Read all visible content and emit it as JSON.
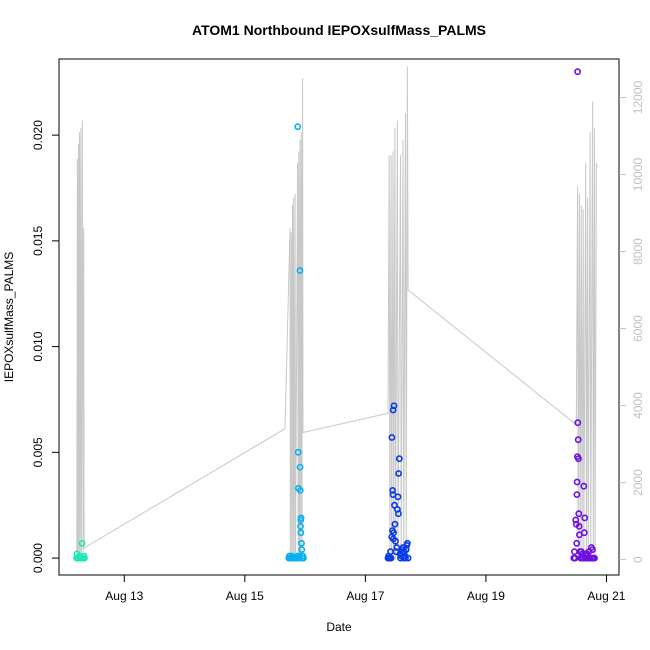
{
  "chart_data": {
    "type": "scatter",
    "title": "ATOM1 Northbound IEPOXsulfMass_PALMS",
    "xlabel": "Date",
    "ylabel": "IEPOXsulfMass_PALMS",
    "xlim": [
      "2016-08-11T22:00",
      "2016-08-21T05:00"
    ],
    "ylim": [
      -0.0008,
      0.0236
    ],
    "x_ticks": [
      {
        "date": "2016-08-13T00:00",
        "label": "Aug 13"
      },
      {
        "date": "2016-08-15T00:00",
        "label": "Aug 15"
      },
      {
        "date": "2016-08-17T00:00",
        "label": "Aug 17"
      },
      {
        "date": "2016-08-19T00:00",
        "label": "Aug 19"
      },
      {
        "date": "2016-08-21T00:00",
        "label": "Aug 21"
      }
    ],
    "y_ticks": [
      {
        "value": 0.0,
        "label": "0.000"
      },
      {
        "value": 0.005,
        "label": "0.005"
      },
      {
        "value": 0.01,
        "label": "0.010"
      },
      {
        "value": 0.015,
        "label": "0.015"
      },
      {
        "value": 0.02,
        "label": "0.020"
      }
    ],
    "y2lim": [
      -400,
      13000
    ],
    "y2_ticks": [
      {
        "value": 0,
        "label": "0"
      },
      {
        "value": 2000,
        "label": "2000"
      },
      {
        "value": 4000,
        "label": "4000"
      },
      {
        "value": 6000,
        "label": "6000"
      },
      {
        "value": 8000,
        "label": "8000"
      },
      {
        "value": 10000,
        "label": "10000"
      },
      {
        "value": 12000,
        "label": "12000"
      }
    ],
    "grid": false,
    "colors": {
      "altitude_line": "#c8c8c8",
      "right_axis": "#c0c0c0",
      "axis": "#000000"
    },
    "altitude_series": {
      "y_axis": "right",
      "color": "#c8c8c8",
      "points": [
        [
          "2016-08-12T05:05",
          0
        ],
        [
          "2016-08-12T05:20",
          10400
        ],
        [
          "2016-08-12T05:30",
          0
        ],
        [
          "2016-08-12T05:45",
          10800
        ],
        [
          "2016-08-12T05:55",
          0
        ],
        [
          "2016-08-12T06:10",
          11100
        ],
        [
          "2016-08-12T06:25",
          0
        ],
        [
          "2016-08-12T06:40",
          11200
        ],
        [
          "2016-08-12T06:55",
          0
        ],
        [
          "2016-08-12T07:20",
          11400
        ],
        [
          "2016-08-12T07:35",
          200
        ],
        [
          "2016-08-12T07:50",
          8600
        ],
        [
          "2016-08-12T08:00",
          300
        ],
        [
          "2016-08-15T16:00",
          3400
        ],
        [
          "2016-08-15T18:00",
          8600
        ],
        [
          "2016-08-15T18:10",
          0
        ],
        [
          "2016-08-15T18:30",
          8500
        ],
        [
          "2016-08-15T18:40",
          0
        ],
        [
          "2016-08-15T19:00",
          9200
        ],
        [
          "2016-08-15T19:10",
          0
        ],
        [
          "2016-08-15T19:25",
          9400
        ],
        [
          "2016-08-15T19:40",
          0
        ],
        [
          "2016-08-15T20:00",
          9500
        ],
        [
          "2016-08-15T20:10",
          0
        ],
        [
          "2016-08-15T21:00",
          10300
        ],
        [
          "2016-08-15T21:15",
          0
        ],
        [
          "2016-08-15T21:30",
          10600
        ],
        [
          "2016-08-15T21:45",
          0
        ],
        [
          "2016-08-15T22:00",
          10900
        ],
        [
          "2016-08-15T22:15",
          0
        ],
        [
          "2016-08-15T22:30",
          11100
        ],
        [
          "2016-08-15T22:45",
          0
        ],
        [
          "2016-08-15T23:00",
          12500
        ],
        [
          "2016-08-15T23:10",
          3300
        ],
        [
          "2016-08-17T09:00",
          3800
        ],
        [
          "2016-08-17T09:30",
          10500
        ],
        [
          "2016-08-17T09:45",
          0
        ],
        [
          "2016-08-17T10:15",
          10500
        ],
        [
          "2016-08-17T10:30",
          0
        ],
        [
          "2016-08-17T11:00",
          10600
        ],
        [
          "2016-08-17T11:15",
          0
        ],
        [
          "2016-08-17T11:45",
          11200
        ],
        [
          "2016-08-17T12:00",
          0
        ],
        [
          "2016-08-17T12:45",
          11400
        ],
        [
          "2016-08-17T13:00",
          0
        ],
        [
          "2016-08-17T14:00",
          10500
        ],
        [
          "2016-08-17T14:15",
          0
        ],
        [
          "2016-08-17T15:00",
          10900
        ],
        [
          "2016-08-17T15:15",
          0
        ],
        [
          "2016-08-17T16:00",
          11600
        ],
        [
          "2016-08-17T16:15",
          0
        ],
        [
          "2016-08-17T16:45",
          12800
        ],
        [
          "2016-08-17T17:00",
          7000
        ],
        [
          "2016-08-20T12:00",
          3500
        ],
        [
          "2016-08-20T12:30",
          9700
        ],
        [
          "2016-08-20T12:45",
          0
        ],
        [
          "2016-08-20T13:15",
          9500
        ],
        [
          "2016-08-20T13:30",
          0
        ],
        [
          "2016-08-20T14:00",
          9200
        ],
        [
          "2016-08-20T14:15",
          0
        ],
        [
          "2016-08-20T14:45",
          9100
        ],
        [
          "2016-08-20T15:00",
          0
        ],
        [
          "2016-08-20T15:45",
          10300
        ],
        [
          "2016-08-20T16:00",
          0
        ],
        [
          "2016-08-20T16:30",
          9400
        ],
        [
          "2016-08-20T16:45",
          0
        ],
        [
          "2016-08-20T17:30",
          11100
        ],
        [
          "2016-08-20T17:45",
          0
        ],
        [
          "2016-08-20T18:30",
          11900
        ],
        [
          "2016-08-20T18:45",
          0
        ],
        [
          "2016-08-20T19:15",
          11200
        ],
        [
          "2016-08-20T19:30",
          0
        ],
        [
          "2016-08-20T20:00",
          10300
        ],
        [
          "2016-08-20T20:15",
          10200
        ]
      ]
    },
    "series": [
      {
        "color": "#1de9b6",
        "points": [
          [
            "2016-08-12T05:00",
            0.0
          ],
          [
            "2016-08-12T05:05",
            0.0002
          ],
          [
            "2016-08-12T05:20",
            0.0
          ],
          [
            "2016-08-12T05:40",
            0.0
          ],
          [
            "2016-08-12T06:00",
            0.0
          ],
          [
            "2016-08-12T06:20",
            0.0001
          ],
          [
            "2016-08-12T06:40",
            0.0
          ],
          [
            "2016-08-12T07:00",
            0.0
          ],
          [
            "2016-08-12T07:10",
            0.0007
          ],
          [
            "2016-08-12T07:20",
            0.0
          ],
          [
            "2016-08-12T07:40",
            0.0
          ],
          [
            "2016-08-12T07:55",
            0.0001
          ],
          [
            "2016-08-12T08:10",
            0.0
          ]
        ]
      },
      {
        "color": "#0ab0f0",
        "points": [
          [
            "2016-08-15T17:30",
            0.0
          ],
          [
            "2016-08-15T17:45",
            0.0001
          ],
          [
            "2016-08-15T18:00",
            0.0
          ],
          [
            "2016-08-15T18:15",
            0.0
          ],
          [
            "2016-08-15T18:30",
            0.0
          ],
          [
            "2016-08-15T18:45",
            0.0001
          ],
          [
            "2016-08-15T19:00",
            0.0
          ],
          [
            "2016-08-15T19:15",
            0.0
          ],
          [
            "2016-08-15T19:30",
            0.0
          ],
          [
            "2016-08-15T19:45",
            0.0
          ],
          [
            "2016-08-15T20:00",
            0.0
          ],
          [
            "2016-08-15T20:10",
            0.0
          ],
          [
            "2016-08-15T20:30",
            0.0
          ],
          [
            "2016-08-15T20:45",
            0.0
          ],
          [
            "2016-08-15T21:00",
            0.0001
          ],
          [
            "2016-08-15T21:05",
            0.0204
          ],
          [
            "2016-08-15T21:15",
            0.005
          ],
          [
            "2016-08-15T21:20",
            0.0033
          ],
          [
            "2016-08-15T21:30",
            0.0
          ],
          [
            "2016-08-15T21:45",
            0.0001
          ],
          [
            "2016-08-15T21:55",
            0.0136
          ],
          [
            "2016-08-15T22:00",
            0.0043
          ],
          [
            "2016-08-15T22:05",
            0.0032
          ],
          [
            "2016-08-15T22:10",
            0.0015
          ],
          [
            "2016-08-15T22:15",
            0.0018
          ],
          [
            "2016-08-15T22:20",
            0.0012
          ],
          [
            "2016-08-15T22:25",
            0.0019
          ],
          [
            "2016-08-15T22:35",
            0.0007
          ],
          [
            "2016-08-15T22:40",
            0.0004
          ],
          [
            "2016-08-15T22:50",
            0.0
          ],
          [
            "2016-08-15T23:00",
            0.0
          ],
          [
            "2016-08-15T23:10",
            0.0001
          ],
          [
            "2016-08-15T23:20",
            0.0
          ]
        ]
      },
      {
        "color": "#0a3ae6",
        "points": [
          [
            "2016-08-17T09:00",
            0.0
          ],
          [
            "2016-08-17T09:15",
            0.0001
          ],
          [
            "2016-08-17T09:30",
            0.0
          ],
          [
            "2016-08-17T09:45",
            0.0
          ],
          [
            "2016-08-17T10:00",
            0.0003
          ],
          [
            "2016-08-17T10:15",
            0.0
          ],
          [
            "2016-08-17T10:30",
            0.001
          ],
          [
            "2016-08-17T10:35",
            0.0057
          ],
          [
            "2016-08-17T10:45",
            0.0013
          ],
          [
            "2016-08-17T10:50",
            0.0032
          ],
          [
            "2016-08-17T11:00",
            0.003
          ],
          [
            "2016-08-17T11:05",
            0.007
          ],
          [
            "2016-08-17T11:10",
            0.0009
          ],
          [
            "2016-08-17T11:15",
            0.0012
          ],
          [
            "2016-08-17T11:25",
            0.0072
          ],
          [
            "2016-08-17T11:35",
            0.0025
          ],
          [
            "2016-08-17T11:45",
            0.0016
          ],
          [
            "2016-08-17T12:00",
            0.0008
          ],
          [
            "2016-08-17T12:15",
            0.0003
          ],
          [
            "2016-08-17T12:30",
            0.0005
          ],
          [
            "2016-08-17T12:45",
            0.0023
          ],
          [
            "2016-08-17T13:00",
            0.0029
          ],
          [
            "2016-08-17T13:10",
            0.0021
          ],
          [
            "2016-08-17T13:15",
            0.004
          ],
          [
            "2016-08-17T13:30",
            0.0047
          ],
          [
            "2016-08-17T13:45",
            0.0002
          ],
          [
            "2016-08-17T14:00",
            0.0
          ],
          [
            "2016-08-17T14:15",
            0.0001
          ],
          [
            "2016-08-17T14:30",
            0.0004
          ],
          [
            "2016-08-17T14:45",
            0.0003
          ],
          [
            "2016-08-17T15:00",
            0.0005
          ],
          [
            "2016-08-17T15:15",
            0.0
          ],
          [
            "2016-08-17T15:30",
            0.0003
          ],
          [
            "2016-08-17T15:45",
            0.0001
          ],
          [
            "2016-08-17T16:00",
            0.0
          ],
          [
            "2016-08-17T16:15",
            0.0004
          ],
          [
            "2016-08-17T16:30",
            0.0006
          ],
          [
            "2016-08-17T16:45",
            0.0007
          ],
          [
            "2016-08-17T17:00",
            0.0
          ]
        ]
      },
      {
        "color": "#6f0fe0",
        "points": [
          [
            "2016-08-20T11:00",
            0.0
          ],
          [
            "2016-08-20T11:15",
            0.0003
          ],
          [
            "2016-08-20T11:30",
            0.0
          ],
          [
            "2016-08-20T11:45",
            0.0018
          ],
          [
            "2016-08-20T12:00",
            0.0016
          ],
          [
            "2016-08-20T12:10",
            0.0007
          ],
          [
            "2016-08-20T12:15",
            0.003
          ],
          [
            "2016-08-20T12:20",
            0.0036
          ],
          [
            "2016-08-20T12:25",
            0.0048
          ],
          [
            "2016-08-20T12:30",
            0.023
          ],
          [
            "2016-08-20T12:35",
            0.0064
          ],
          [
            "2016-08-20T12:45",
            0.0056
          ],
          [
            "2016-08-20T12:50",
            0.0047
          ],
          [
            "2016-08-20T13:00",
            0.0021
          ],
          [
            "2016-08-20T13:10",
            0.0015
          ],
          [
            "2016-08-20T13:15",
            0.0011
          ],
          [
            "2016-08-20T13:30",
            0.0003
          ],
          [
            "2016-08-20T13:45",
            0.0
          ],
          [
            "2016-08-20T14:00",
            0.0003
          ],
          [
            "2016-08-20T14:15",
            0.0
          ],
          [
            "2016-08-20T14:30",
            0.0002
          ],
          [
            "2016-08-20T14:45",
            0.0
          ],
          [
            "2016-08-20T15:00",
            0.0034
          ],
          [
            "2016-08-20T15:10",
            0.0012
          ],
          [
            "2016-08-20T15:20",
            0.0019
          ],
          [
            "2016-08-20T15:30",
            0.0
          ],
          [
            "2016-08-20T15:45",
            0.0002
          ],
          [
            "2016-08-20T16:00",
            0.0
          ],
          [
            "2016-08-20T16:15",
            0.0002
          ],
          [
            "2016-08-20T16:30",
            0.0
          ],
          [
            "2016-08-20T17:00",
            0.0003
          ],
          [
            "2016-08-20T17:15",
            0.0
          ],
          [
            "2016-08-20T17:30",
            0.0
          ],
          [
            "2016-08-20T18:00",
            0.0005
          ],
          [
            "2016-08-20T18:15",
            0.0
          ],
          [
            "2016-08-20T18:30",
            0.0004
          ],
          [
            "2016-08-20T18:45",
            0.0
          ],
          [
            "2016-08-20T19:00",
            0.0
          ],
          [
            "2016-08-20T19:15",
            0.0
          ]
        ]
      }
    ]
  }
}
